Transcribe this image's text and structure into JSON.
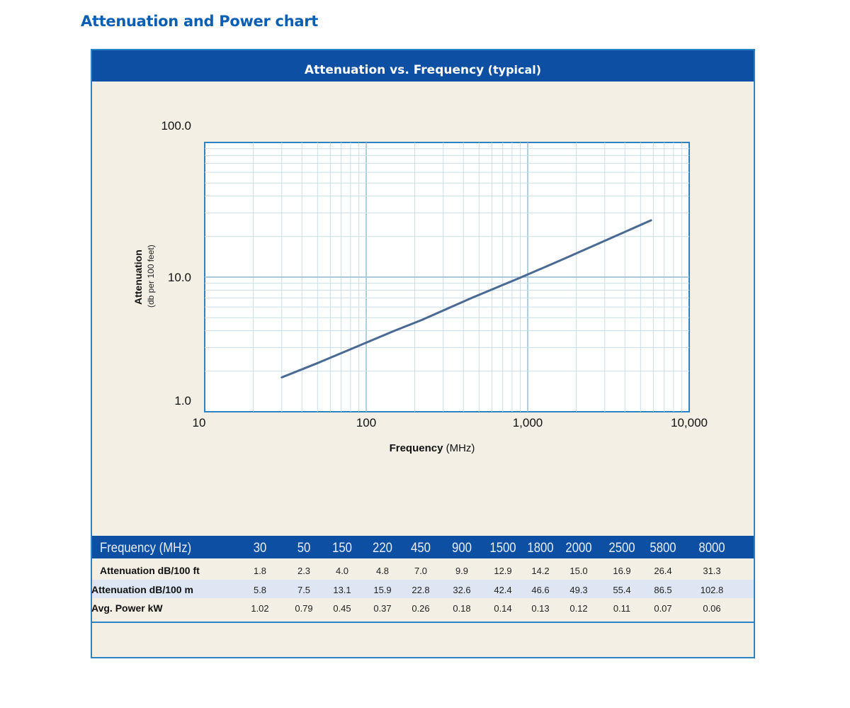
{
  "page_title": "Attenuation and Power chart",
  "chart_title": {
    "main": "Attenuation vs. Frequency",
    "qualifier": "(typical)"
  },
  "colors": {
    "heading": "#0b5fb3",
    "header_band": "#0c4fa3",
    "panel_bg": "#f3efe4",
    "frame": "#2b83c3",
    "grid": "#c9dfe9",
    "line": "#4a6a94",
    "row_highlight": "#dde6f2"
  },
  "chart_data": {
    "type": "line",
    "x_scale": "log",
    "y_scale": "log",
    "xlim": [
      10,
      10000
    ],
    "ylim": [
      1.0,
      100.0
    ],
    "xlabel": "Frequency",
    "xlabel_unit": "(MHz)",
    "ylabel": "Attenuation",
    "ylabel_unit": "(db per 100 feet)",
    "x_tick_labels": [
      "10",
      "100",
      "1,000",
      "10,000"
    ],
    "y_tick_labels": [
      "1.0",
      "10.0",
      "100.0"
    ],
    "grid": true,
    "series": [
      {
        "x": [
          30,
          50,
          150,
          220,
          450,
          900,
          1500,
          1800,
          2000,
          2500,
          5800
        ],
        "y": [
          1.8,
          2.3,
          4.0,
          4.8,
          7.0,
          9.9,
          12.9,
          14.2,
          15.0,
          16.9,
          26.4
        ]
      }
    ]
  },
  "table": {
    "header_label": "Frequency (MHz)",
    "frequencies": [
      "30",
      "50",
      "150",
      "220",
      "450",
      "900",
      "1500",
      "1800",
      "2000",
      "2500",
      "5800",
      "8000"
    ],
    "rows": [
      {
        "label": "Attenuation dB/100 ft",
        "values": [
          "1.8",
          "2.3",
          "4.0",
          "4.8",
          "7.0",
          "9.9",
          "12.9",
          "14.2",
          "15.0",
          "16.9",
          "26.4",
          "31.3"
        ]
      },
      {
        "label": "Attenuation dB/100 m",
        "values": [
          "5.8",
          "7.5",
          "13.1",
          "15.9",
          "22.8",
          "32.6",
          "42.4",
          "46.6",
          "49.3",
          "55.4",
          "86.5",
          "102.8"
        ]
      },
      {
        "label": "Avg. Power kW",
        "values": [
          "1.02",
          "0.79",
          "0.45",
          "0.37",
          "0.26",
          "0.18",
          "0.14",
          "0.13",
          "0.12",
          "0.11",
          "0.07",
          "0.06"
        ]
      }
    ]
  }
}
